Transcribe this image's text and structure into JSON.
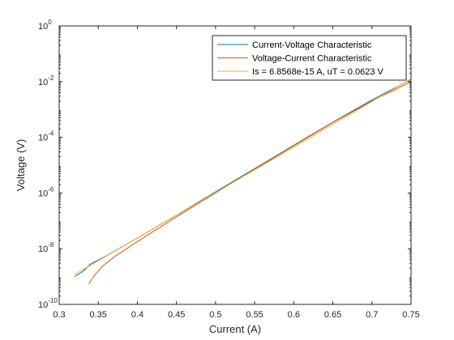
{
  "chart_data": {
    "type": "line",
    "title": "",
    "xlabel": "Current (A)",
    "ylabel": "Voltage (V)",
    "xlim": [
      0.3,
      0.75
    ],
    "ylim": [
      1e-10,
      1
    ],
    "yscale": "log",
    "grid": false,
    "legend_position": "top-right",
    "x_ticks": [
      0.3,
      0.35,
      0.4,
      0.45,
      0.5,
      0.55,
      0.6,
      0.65,
      0.7,
      0.75
    ],
    "x_tick_labels": [
      "0.3",
      "0.35",
      "0.4",
      "0.45",
      "0.5",
      "0.55",
      "0.6",
      "0.65",
      "0.7",
      "0.75"
    ],
    "y_ticks": [
      1e-10,
      1e-08,
      1e-06,
      0.0001,
      0.01,
      1
    ],
    "y_tick_labels": [
      {
        "base": "10",
        "exp": "-10"
      },
      {
        "base": "10",
        "exp": "-8"
      },
      {
        "base": "10",
        "exp": "-6"
      },
      {
        "base": "10",
        "exp": "-4"
      },
      {
        "base": "10",
        "exp": "-2"
      },
      {
        "base": "10",
        "exp": "0"
      }
    ],
    "series": [
      {
        "name": "Current-Voltage Characteristic",
        "color": "#0072BD",
        "x": [
          0.32,
          0.33,
          0.34,
          0.36,
          0.4,
          0.45,
          0.5,
          0.55,
          0.6,
          0.65,
          0.7,
          0.75
        ],
        "y": [
          1e-09,
          1.5e-09,
          2.8e-09,
          5.5e-09,
          2.4e-08,
          1.6e-07,
          1.1e-06,
          7.5e-06,
          5.2e-05,
          0.00035,
          0.0022,
          0.012
        ]
      },
      {
        "name": "Voltage-Current Characteristic",
        "color": "#D95319",
        "x": [
          0.338,
          0.345,
          0.355,
          0.37,
          0.4,
          0.45,
          0.5,
          0.55,
          0.6,
          0.65,
          0.7,
          0.75
        ],
        "y": [
          5.5e-10,
          1.1e-09,
          2.3e-09,
          5e-09,
          1.8e-08,
          1.4e-07,
          1e-06,
          7.2e-06,
          5e-05,
          0.00034,
          0.002,
          0.01
        ]
      },
      {
        "name": "Is = 6.8568e-15 A, uT = 0.0623 V",
        "color": "#EDB120",
        "x": [
          0.32,
          0.75
        ],
        "y": [
          1.2e-09,
          0.0125
        ]
      }
    ]
  }
}
